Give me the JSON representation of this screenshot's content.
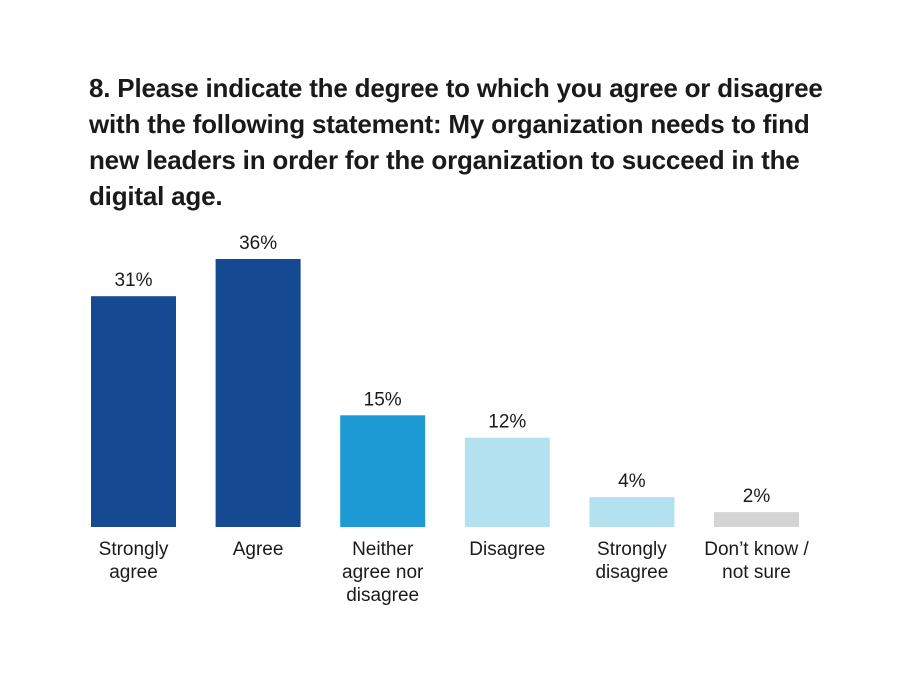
{
  "question": "8. Please indicate the degree to which you agree or disagree with the following statement: My organization needs to find new leaders in order for the organization to succeed in the digital age.",
  "colors": {
    "dark_blue": "#154a93",
    "mid_blue": "#1d9ad4",
    "light_blue": "#b3e1ef",
    "gray": "#d4d4d4",
    "text": "#1a1a1a"
  },
  "chart_data": {
    "type": "bar",
    "title": "8. Please indicate the degree to which you agree or disagree with the following statement: My organization needs to find new leaders in order for the organization to succeed in the digital age.",
    "categories": [
      "Strongly\nagree",
      "Agree",
      "Neither\nagree nor\ndisagree",
      "Disagree",
      "Strongly\ndisagree",
      "Don’t know /\nnot sure"
    ],
    "values": [
      31,
      36,
      15,
      12,
      4,
      2
    ],
    "value_labels": [
      "31%",
      "36%",
      "15%",
      "12%",
      "4%",
      "2%"
    ],
    "bar_colors": [
      "#154a93",
      "#154a93",
      "#1d9ad4",
      "#b3e1ef",
      "#b3e1ef",
      "#d4d4d4"
    ],
    "ylim": [
      0,
      36
    ],
    "grid": false,
    "legend": "none",
    "xlabel": "",
    "ylabel": ""
  }
}
